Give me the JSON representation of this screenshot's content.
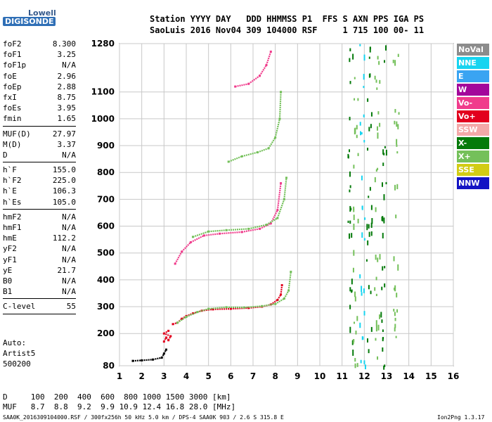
{
  "logo": {
    "line1": "Lowell",
    "line2": "DIGISONDE"
  },
  "header": {
    "line1": "Station YYYY DAY   DDD HHMMSS P1  FFS S AXN PPS IGA PS",
    "line2": "SaoLuis 2016 Nov04 309 104000 RSF     1 715 100 00- 11"
  },
  "params": [
    {
      "label": "foF2",
      "value": "8.300"
    },
    {
      "label": "foF1",
      "value": "3.25"
    },
    {
      "label": "foF1p",
      "value": "N/A"
    },
    {
      "label": "foE",
      "value": "2.96"
    },
    {
      "label": "foEp",
      "value": "2.88"
    },
    {
      "label": "fxI",
      "value": "8.75"
    },
    {
      "label": "foEs",
      "value": "3.95"
    },
    {
      "label": "fmin",
      "value": "1.65"
    },
    {
      "sep": true
    },
    {
      "label": "MUF(D)",
      "value": "27.97"
    },
    {
      "label": "M(D)",
      "value": "3.37"
    },
    {
      "label": "D",
      "value": "N/A"
    },
    {
      "sep": true
    },
    {
      "label": "h`F",
      "value": "155.0"
    },
    {
      "label": "h`F2",
      "value": "225.0"
    },
    {
      "label": "h`E",
      "value": "106.3"
    },
    {
      "label": "h`Es",
      "value": "105.0"
    },
    {
      "sep": true
    },
    {
      "label": "hmF2",
      "value": "N/A"
    },
    {
      "label": "hmF1",
      "value": "N/A"
    },
    {
      "label": "hmE",
      "value": "112.2"
    },
    {
      "label": "yF2",
      "value": "N/A"
    },
    {
      "label": "yF1",
      "value": "N/A"
    },
    {
      "label": "yE",
      "value": "21.7"
    },
    {
      "label": "B0",
      "value": "N/A"
    },
    {
      "label": "B1",
      "value": "N/A"
    },
    {
      "sep": true
    },
    {
      "label": "C-level",
      "value": "55"
    },
    {
      "sep": true
    }
  ],
  "auto": {
    "line1": "Auto:",
    "line2": "Artist5",
    "line3": "500200"
  },
  "legend": [
    {
      "label": "NoVal",
      "color": "#8c8c8c"
    },
    {
      "label": "NNE",
      "color": "#17d4f0"
    },
    {
      "label": "E",
      "color": "#3aa4f2"
    },
    {
      "label": "W",
      "color": "#a3079b"
    },
    {
      "label": "Vo-",
      "color": "#f03c8c"
    },
    {
      "label": "Vo+",
      "color": "#e2001e"
    },
    {
      "label": "SSW",
      "color": "#f4a9a9"
    },
    {
      "label": "X-",
      "color": "#047a0a"
    },
    {
      "label": "X+",
      "color": "#74c05a"
    },
    {
      "label": "SSE",
      "color": "#d2cc14"
    },
    {
      "label": "NNW",
      "color": "#1414c4"
    }
  ],
  "bottom": {
    "dline": "D     100  200  400  600  800 1000 1500 3000 [km]",
    "mufline": "MUF   8.7  8.8  9.2  9.9 10.9 12.4 16.8 28.0 [MHz]",
    "footer_left": "SAA0K_2016309104000.RSF / 300fx256h 50 kHz 5.0 km / DPS-4 SAA0K 903 / 2.6 S 315.8 E",
    "footer_right": "Ion2Png 1.3.17"
  },
  "chart_data": {
    "type": "scatter",
    "xlim": [
      1,
      16
    ],
    "ylim": [
      80,
      1280
    ],
    "x_ticks": [
      1,
      2,
      3,
      4,
      5,
      6,
      7,
      8,
      9,
      10,
      11,
      12,
      13,
      14,
      15,
      16
    ],
    "y_ticks": [
      80,
      200,
      300,
      400,
      500,
      600,
      700,
      800,
      900,
      1000,
      1100,
      1280
    ],
    "grid": true,
    "traces": [
      {
        "name": "F2 trace (O)",
        "color": "#e2001e",
        "points": [
          [
            3.4,
            235
          ],
          [
            3.6,
            240
          ],
          [
            3.8,
            255
          ],
          [
            4.0,
            265
          ],
          [
            4.3,
            275
          ],
          [
            4.7,
            285
          ],
          [
            5.2,
            290
          ],
          [
            6.0,
            292
          ],
          [
            6.8,
            295
          ],
          [
            7.4,
            300
          ],
          [
            7.8,
            308
          ],
          [
            8.1,
            325
          ],
          [
            8.25,
            345
          ],
          [
            8.3,
            380
          ]
        ]
      },
      {
        "name": "F2 trace (X)",
        "color": "#74c05a",
        "points": [
          [
            3.6,
            240
          ],
          [
            4.0,
            262
          ],
          [
            4.5,
            280
          ],
          [
            5.0,
            292
          ],
          [
            5.8,
            298
          ],
          [
            6.6,
            297
          ],
          [
            7.4,
            302
          ],
          [
            8.0,
            310
          ],
          [
            8.4,
            330
          ],
          [
            8.6,
            360
          ],
          [
            8.7,
            430
          ]
        ]
      },
      {
        "name": "2F multihop (O)",
        "color": "#f03c8c",
        "points": [
          [
            3.5,
            460
          ],
          [
            3.8,
            505
          ],
          [
            4.2,
            540
          ],
          [
            4.8,
            565
          ],
          [
            5.5,
            572
          ],
          [
            6.5,
            578
          ],
          [
            7.3,
            590
          ],
          [
            7.8,
            610
          ],
          [
            8.1,
            660
          ],
          [
            8.25,
            760
          ]
        ]
      },
      {
        "name": "2F multihop (X)",
        "color": "#74c05a",
        "points": [
          [
            4.3,
            560
          ],
          [
            5.0,
            580
          ],
          [
            5.8,
            585
          ],
          [
            6.8,
            590
          ],
          [
            7.6,
            605
          ],
          [
            8.1,
            630
          ],
          [
            8.4,
            700
          ],
          [
            8.5,
            780
          ]
        ]
      },
      {
        "name": "3F multihop",
        "color": "#74c05a",
        "points": [
          [
            5.9,
            840
          ],
          [
            6.5,
            860
          ],
          [
            7.2,
            875
          ],
          [
            7.7,
            890
          ],
          [
            8.0,
            930
          ],
          [
            8.2,
            1000
          ],
          [
            8.25,
            1100
          ]
        ]
      },
      {
        "name": "4F multihop",
        "color": "#f03c8c",
        "points": [
          [
            6.2,
            1120
          ],
          [
            6.8,
            1130
          ],
          [
            7.3,
            1160
          ],
          [
            7.6,
            1200
          ],
          [
            7.8,
            1250
          ]
        ]
      },
      {
        "name": "E trace",
        "color": "#000000",
        "points": [
          [
            1.6,
            98
          ],
          [
            2.0,
            100
          ],
          [
            2.5,
            103
          ],
          [
            2.9,
            110
          ],
          [
            3.0,
            125
          ],
          [
            3.1,
            140
          ]
        ]
      },
      {
        "name": "Es echoes",
        "color": "#e2001e",
        "points": [
          [
            3.0,
            170
          ],
          [
            3.1,
            185
          ],
          [
            3.2,
            175
          ],
          [
            3.3,
            190
          ],
          [
            3.0,
            200
          ],
          [
            3.2,
            210
          ]
        ]
      }
    ],
    "scatter_columns": [
      {
        "x": 11.35,
        "color": "#047a0a"
      },
      {
        "x": 11.6,
        "color": "#74c05a"
      },
      {
        "x": 12.2,
        "color": "#047a0a"
      },
      {
        "x": 12.55,
        "color": "#74c05a"
      },
      {
        "x": 12.85,
        "color": "#047a0a"
      },
      {
        "x": 11.9,
        "color": "#17d4f0"
      },
      {
        "x": 13.4,
        "color": "#74c05a"
      }
    ]
  }
}
